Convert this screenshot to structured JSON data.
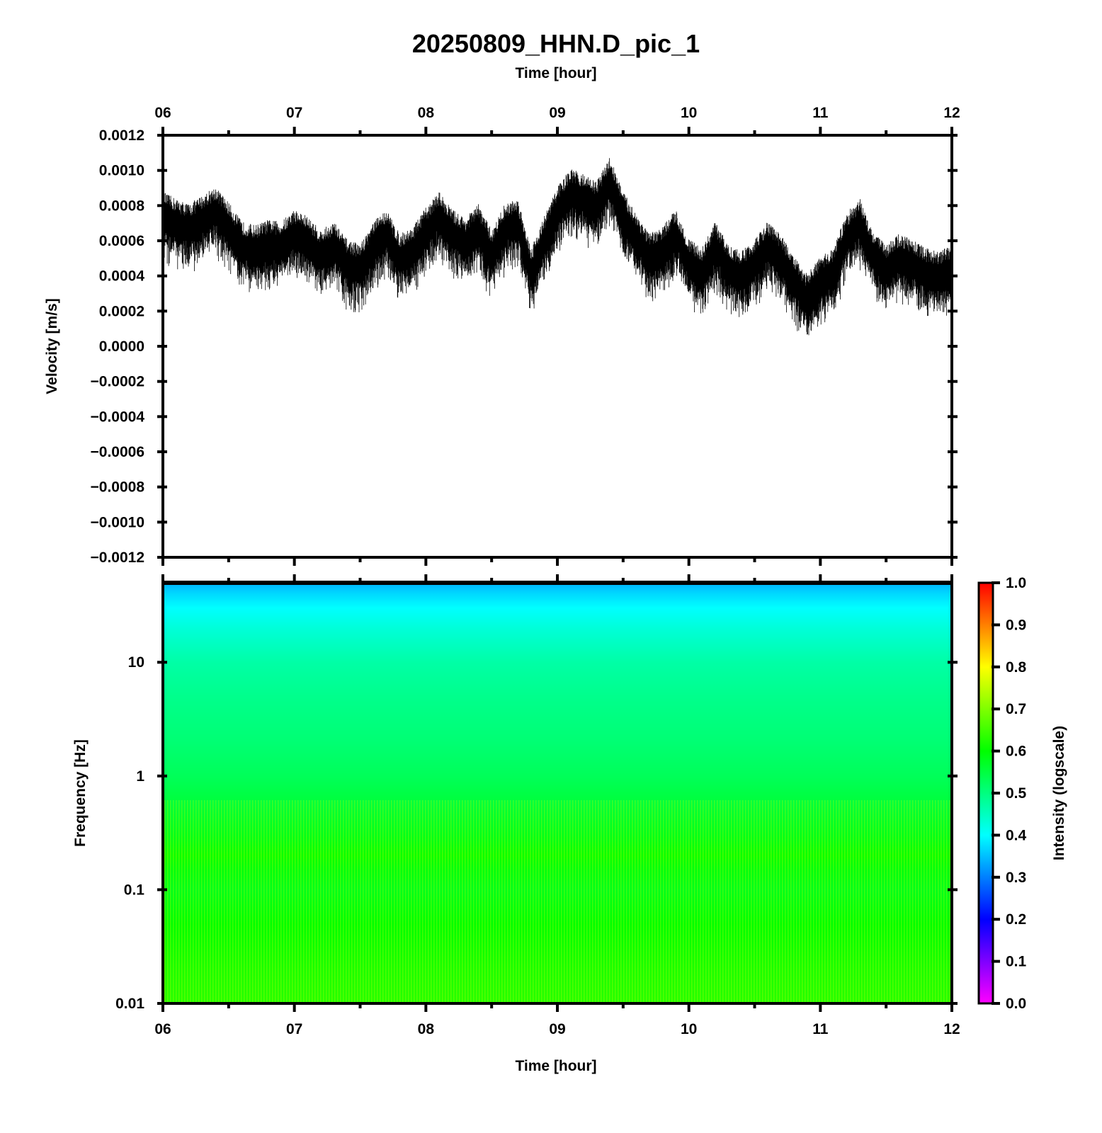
{
  "chart_data": [
    {
      "type": "line",
      "title": "20250809_HHN.D_pic_1",
      "top_xlabel": "Time [hour]",
      "ylabel": "Velocity [m/s]",
      "x_ticks": [
        "06",
        "07",
        "08",
        "09",
        "10",
        "11",
        "12"
      ],
      "xlim": [
        6,
        12
      ],
      "ylim": [
        -0.0012,
        0.0012
      ],
      "y_ticks": [
        "0.0012",
        "0.0010",
        "0.0008",
        "0.0006",
        "0.0004",
        "0.0002",
        "0.0000",
        "−0.0002",
        "−0.0004",
        "−0.0006",
        "−0.0008",
        "−0.0010",
        "−0.0012"
      ],
      "y_tick_values": [
        0.0012,
        0.001,
        0.0008,
        0.0006,
        0.0004,
        0.0002,
        0,
        -0.0002,
        -0.0004,
        -0.0006,
        -0.0008,
        -0.001,
        -0.0012
      ],
      "series_color": "#000000",
      "series": [
        {
          "x": [
            6.0,
            6.1,
            6.2,
            6.3,
            6.4,
            6.5,
            6.6,
            6.7,
            6.8,
            6.9,
            7.0,
            7.1,
            7.2,
            7.3,
            7.4,
            7.5,
            7.6,
            7.7,
            7.8,
            7.9,
            8.0,
            8.1,
            8.2,
            8.3,
            8.4,
            8.5,
            8.6,
            8.7,
            8.8,
            8.9,
            9.0,
            9.1,
            9.2,
            9.3,
            9.4,
            9.5,
            9.6,
            9.7,
            9.8,
            9.9,
            10.0,
            10.1,
            10.2,
            10.3,
            10.4,
            10.5,
            10.6,
            10.7,
            10.8,
            10.9,
            11.0,
            11.1,
            11.2,
            11.3,
            11.4,
            11.5,
            11.6,
            11.7,
            11.8,
            11.9,
            12.0
          ],
          "y": [
            0.00072,
            0.00068,
            0.00065,
            0.0007,
            0.00075,
            0.00066,
            0.00055,
            0.00053,
            0.00056,
            0.00055,
            0.00062,
            0.00058,
            0.0005,
            0.00055,
            0.00045,
            0.00042,
            0.00055,
            0.00062,
            0.00048,
            0.00052,
            0.00063,
            0.00072,
            0.00062,
            0.00057,
            0.00065,
            0.0005,
            0.00065,
            0.00068,
            0.0004,
            0.00058,
            0.00075,
            0.00085,
            0.00082,
            0.00078,
            0.00092,
            0.00072,
            0.0006,
            0.00048,
            0.00052,
            0.00062,
            0.00045,
            0.0004,
            0.00055,
            0.00042,
            0.00038,
            0.00045,
            0.00055,
            0.00048,
            0.00035,
            0.00025,
            0.00035,
            0.0004,
            0.0006,
            0.00068,
            0.0005,
            0.00042,
            0.00048,
            0.00045,
            0.0004,
            0.00038,
            0.00042
          ]
        }
      ]
    },
    {
      "type": "heatmap",
      "xlabel": "Time [hour]",
      "ylabel": "Frequency [Hz]",
      "x_ticks": [
        "06",
        "07",
        "08",
        "09",
        "10",
        "11",
        "12"
      ],
      "xlim": [
        6,
        12
      ],
      "y_scale": "log",
      "ylim": [
        0.01,
        50
      ],
      "y_ticks": [
        "10",
        "1",
        "0.1",
        "0.01"
      ],
      "y_tick_values": [
        10,
        1,
        0.1,
        0.01
      ],
      "colorbar": {
        "label": "Intensity (logscale)",
        "range": [
          0.0,
          1.0
        ],
        "ticks": [
          "1.0",
          "0.9",
          "0.8",
          "0.7",
          "0.6",
          "0.5",
          "0.4",
          "0.3",
          "0.2",
          "0.1",
          "0.0"
        ],
        "tick_values": [
          1.0,
          0.9,
          0.8,
          0.7,
          0.6,
          0.5,
          0.4,
          0.3,
          0.2,
          0.1,
          0.0
        ],
        "colors": [
          "#ff00ff",
          "#0000ff",
          "#00ffff",
          "#00ff00",
          "#ffff00",
          "#ff0000"
        ]
      },
      "frequency_profile": {
        "frequency_hz": [
          50,
          40,
          30,
          20,
          10,
          5,
          2,
          1,
          0.5,
          0.3,
          0.2,
          0.15,
          0.1,
          0.05,
          0.02,
          0.01
        ],
        "intensity": [
          0.34,
          0.37,
          0.4,
          0.43,
          0.47,
          0.49,
          0.51,
          0.53,
          0.56,
          0.58,
          0.61,
          0.59,
          0.58,
          0.6,
          0.62,
          0.63
        ]
      }
    }
  ]
}
